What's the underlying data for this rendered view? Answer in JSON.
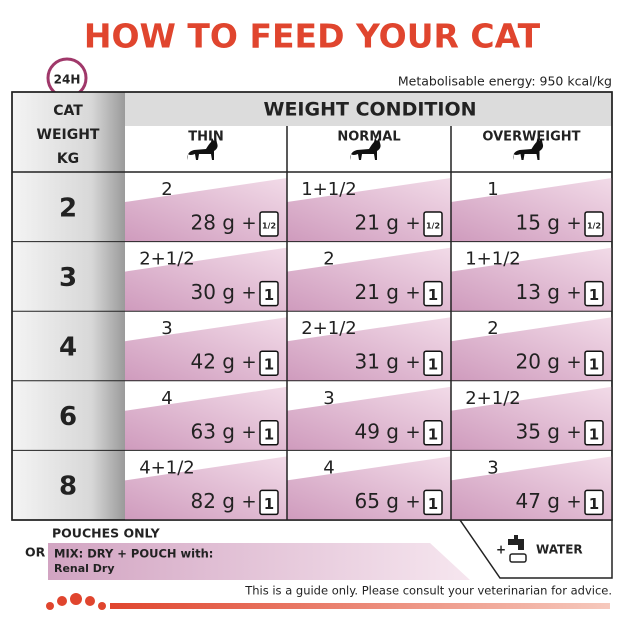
{
  "title": "HOW TO FEED YOUR CAT",
  "badge": "24H",
  "energy": "Metabolisable energy: 950 kcal/kg",
  "header": {
    "weight_label": [
      "CAT",
      "WEIGHT",
      "KG"
    ],
    "condition_title": "WEIGHT CONDITION",
    "columns": [
      "THIN",
      "NORMAL",
      "OVERWEIGHT"
    ]
  },
  "plus": "+",
  "rows": [
    {
      "weight": "2",
      "cells": [
        {
          "pouches": "2",
          "grams": "28 g",
          "icon": "1/2"
        },
        {
          "pouches": "1+1/2",
          "grams": "21 g",
          "icon": "1/2"
        },
        {
          "pouches": "1",
          "grams": "15 g",
          "icon": "1/2"
        }
      ]
    },
    {
      "weight": "3",
      "cells": [
        {
          "pouches": "2+1/2",
          "grams": "30 g",
          "icon": "1"
        },
        {
          "pouches": "2",
          "grams": "21 g",
          "icon": "1"
        },
        {
          "pouches": "1+1/2",
          "grams": "13 g",
          "icon": "1"
        }
      ]
    },
    {
      "weight": "4",
      "cells": [
        {
          "pouches": "3",
          "grams": "42 g",
          "icon": "1"
        },
        {
          "pouches": "2+1/2",
          "grams": "31 g",
          "icon": "1"
        },
        {
          "pouches": "2",
          "grams": "20 g",
          "icon": "1"
        }
      ]
    },
    {
      "weight": "6",
      "cells": [
        {
          "pouches": "4",
          "grams": "63 g",
          "icon": "1"
        },
        {
          "pouches": "3",
          "grams": "49 g",
          "icon": "1"
        },
        {
          "pouches": "2+1/2",
          "grams": "35 g",
          "icon": "1"
        }
      ]
    },
    {
      "weight": "8",
      "cells": [
        {
          "pouches": "4+1/2",
          "grams": "82 g",
          "icon": "1"
        },
        {
          "pouches": "4",
          "grams": "65 g",
          "icon": "1"
        },
        {
          "pouches": "3",
          "grams": "47 g",
          "icon": "1"
        }
      ]
    }
  ],
  "footer": {
    "pouches_only": "POUCHES ONLY",
    "or": "OR",
    "mix": "MIX: DRY + POUCH with:",
    "product": "Renal Dry",
    "water_plus": "+",
    "water": "WATER"
  },
  "disclaimer": "This is a guide only. Please consult your veterinarian for advice."
}
